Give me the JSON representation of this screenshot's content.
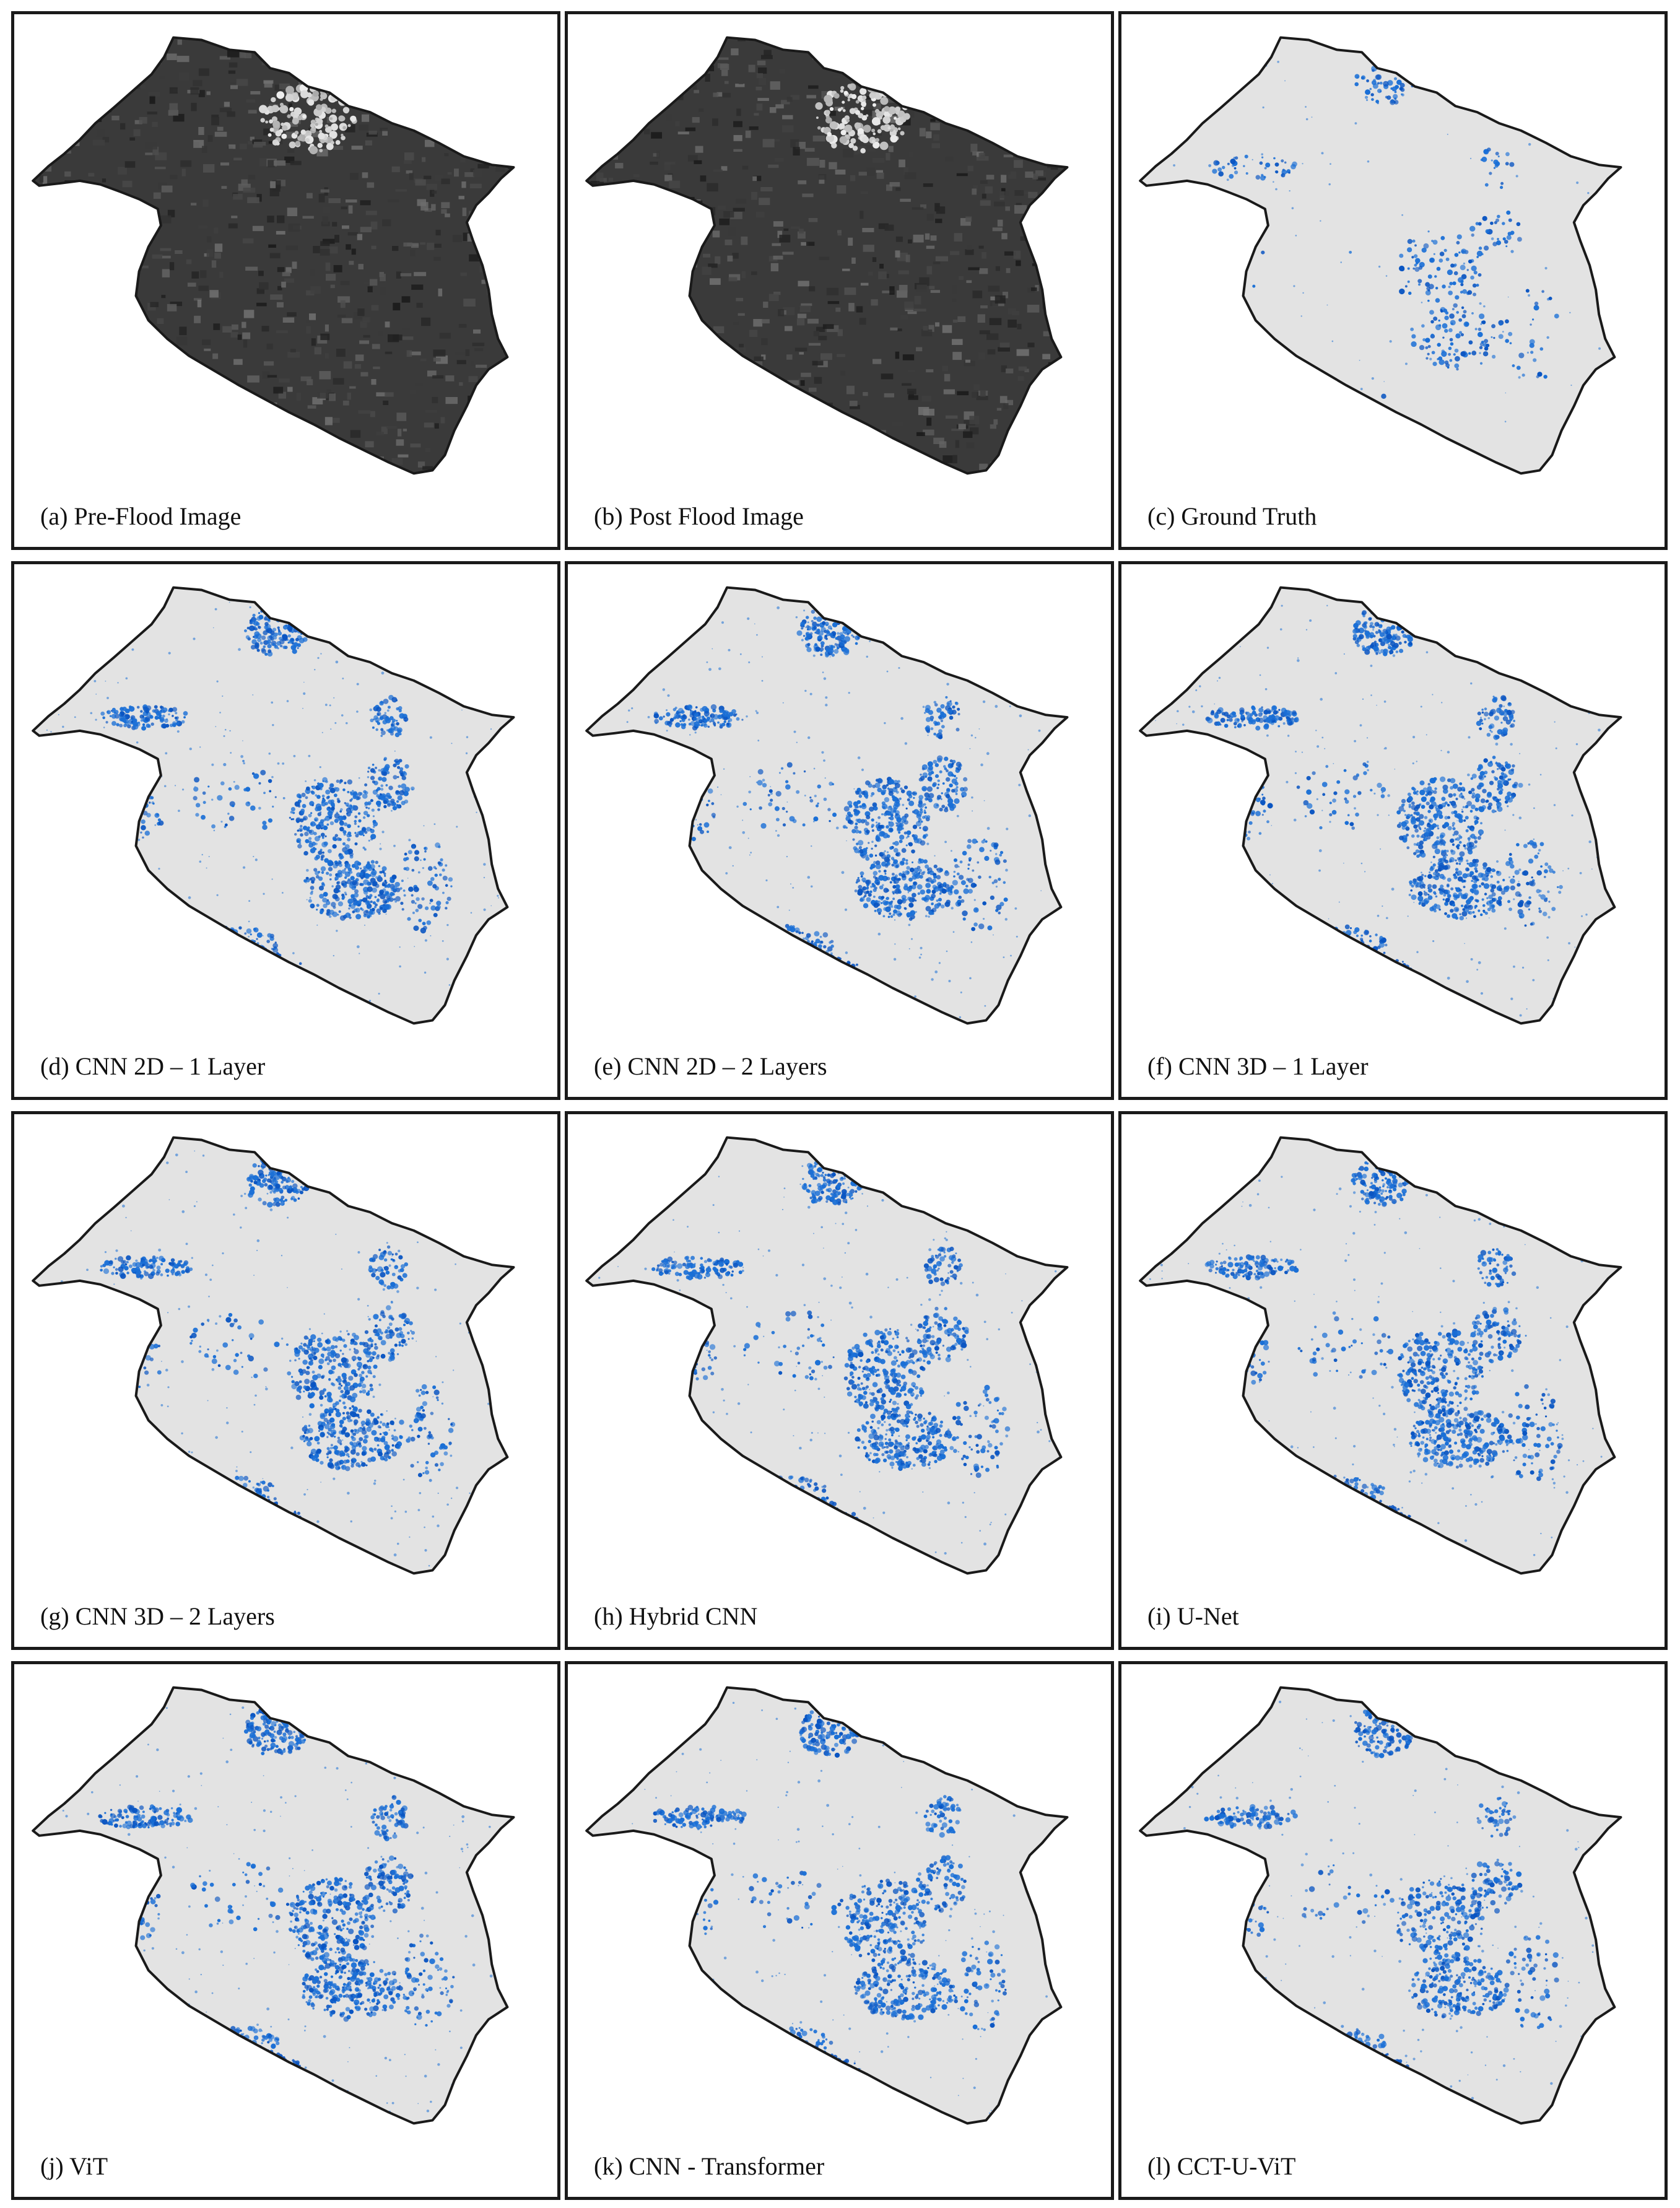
{
  "colors": {
    "frame": "#1a1a1a",
    "map_background": "#e3e3e3",
    "flood": "#1a6fd6",
    "flood_dense": "#0a55c2",
    "satellite_dark": "#3a3a3a",
    "satellite_light": "#d8d8d8"
  },
  "panels": [
    {
      "caption": "(a) Pre-Flood Image",
      "kind": "satellite",
      "variant": "pre"
    },
    {
      "caption": "(b) Post Flood Image",
      "kind": "satellite",
      "variant": "post"
    },
    {
      "caption": "(c) Ground Truth",
      "kind": "flood-map",
      "density": 0.35
    },
    {
      "caption": "(d) CNN 2D – 1 Layer",
      "kind": "flood-map",
      "density": 1.0
    },
    {
      "caption": "(e) CNN 2D – 2 Layers",
      "kind": "flood-map",
      "density": 1.0
    },
    {
      "caption": "(f) CNN 3D – 1 Layer",
      "kind": "flood-map",
      "density": 0.95
    },
    {
      "caption": "(g) CNN 3D – 2 Layers",
      "kind": "flood-map",
      "density": 0.9
    },
    {
      "caption": "(h) Hybrid CNN",
      "kind": "flood-map",
      "density": 0.9
    },
    {
      "caption": "(i) U-Net",
      "kind": "flood-map",
      "density": 0.95
    },
    {
      "caption": "(j) ViT",
      "kind": "flood-map",
      "density": 0.95
    },
    {
      "caption": "(k) CNN - Transformer",
      "kind": "flood-map",
      "density": 0.85
    },
    {
      "caption": "(l) CCT-U-ViT",
      "kind": "flood-map",
      "density": 0.75
    }
  ]
}
